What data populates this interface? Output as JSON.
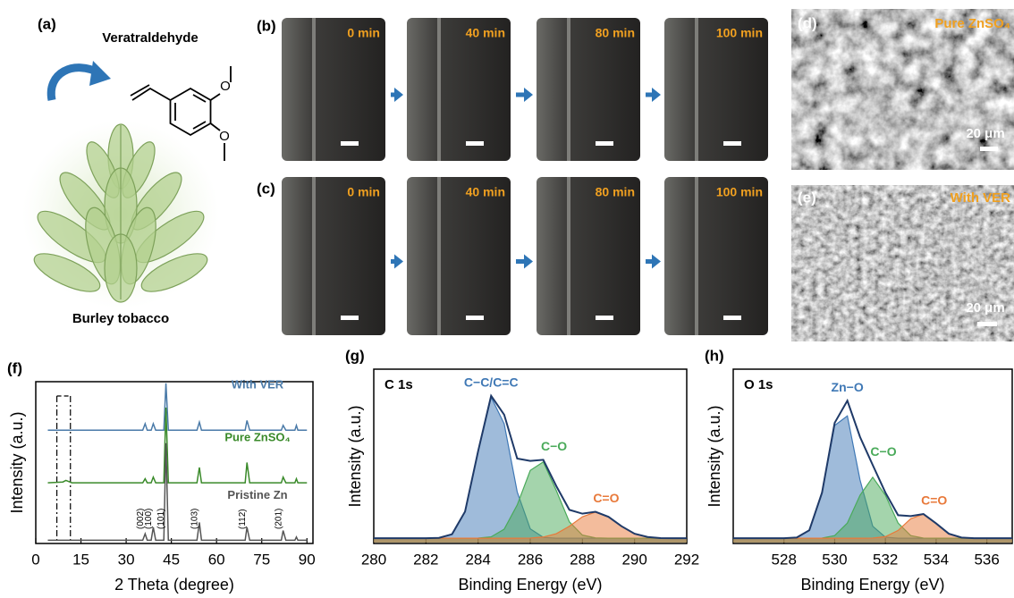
{
  "figure": {
    "panel_a": {
      "label": "(a)",
      "molecule": "Veratraldehyde",
      "atoms": [
        "O",
        "O"
      ],
      "plant": "Burley tobacco"
    },
    "panel_b": {
      "label": "(b)",
      "frames": [
        "0 min",
        "40 min",
        "80 min",
        "100 min"
      ]
    },
    "panel_c": {
      "label": "(c)",
      "frames": [
        "0 min",
        "40 min",
        "80 min",
        "100 min"
      ]
    },
    "panel_d": {
      "label": "(d)",
      "caption": "Pure ZnSO₄",
      "scale": "20 μm"
    },
    "panel_e": {
      "label": "(e)",
      "caption": "With VER",
      "scale": "20 μm"
    }
  },
  "chart_data": [
    {
      "type": "line",
      "panel": "(f)",
      "xlabel": "2 Theta (degree)",
      "ylabel": "Intensity (a.u.)",
      "xlim": [
        0,
        92
      ],
      "ylim": [
        0,
        100
      ],
      "xticks": [
        0,
        15,
        30,
        45,
        60,
        75,
        90
      ],
      "highlight_range": [
        7,
        11.5
      ],
      "x": [
        4,
        9,
        10,
        12,
        20,
        30,
        35.5,
        36.3,
        37,
        38.3,
        39,
        39.8,
        42.5,
        43.2,
        44,
        53.5,
        54.3,
        55,
        69.5,
        70.1,
        71,
        81.5,
        82.1,
        83,
        86,
        86.5,
        87,
        90
      ],
      "series": [
        {
          "name": "With VER",
          "color": "#4a7aa8",
          "values": [
            70,
            70,
            70,
            70,
            70,
            70,
            70,
            74,
            70,
            70,
            74,
            70,
            70,
            99,
            70,
            70,
            75,
            70,
            70,
            76,
            70,
            70,
            73,
            70,
            70,
            73,
            70,
            70
          ]
        },
        {
          "name": "Pure ZnSO₄",
          "color": "#3a8a2a",
          "values": [
            37.5,
            38,
            39,
            37.5,
            37.5,
            37.5,
            37.5,
            40,
            37.5,
            37.5,
            41,
            37.5,
            37.5,
            84,
            37.5,
            37.5,
            47,
            37.5,
            37.5,
            50,
            37.5,
            37.5,
            41,
            37.5,
            37.5,
            40,
            37.5,
            37.5
          ]
        },
        {
          "name": "Pristine Zn",
          "color": "#555555",
          "values": [
            2,
            2,
            2,
            2,
            2,
            2,
            2,
            6,
            2,
            2,
            10,
            2,
            2,
            62,
            2,
            2,
            13,
            2,
            2,
            10,
            2,
            2,
            8,
            2,
            2,
            4,
            2,
            2
          ]
        }
      ],
      "annotations": [
        {
          "text": "(002)",
          "x": 36.3
        },
        {
          "text": "(100)",
          "x": 39
        },
        {
          "text": "(101)",
          "x": 43.2
        },
        {
          "text": "(103)",
          "x": 54.3
        },
        {
          "text": "(112)",
          "x": 70.1
        },
        {
          "text": "(201)",
          "x": 82.1
        }
      ]
    },
    {
      "type": "area",
      "panel": "(g)",
      "title": "C 1s",
      "xlabel": "Binding Energy (eV)",
      "ylabel": "Intensity (a.u.)",
      "xlim": [
        280,
        292
      ],
      "ylim": [
        0,
        100
      ],
      "xticks": [
        280,
        282,
        284,
        286,
        288,
        290,
        292
      ],
      "x": [
        280,
        280.5,
        281,
        281.5,
        282,
        282.5,
        283,
        283.5,
        284,
        284.5,
        285,
        285.5,
        286,
        286.5,
        287,
        287.5,
        288,
        288.5,
        289,
        289.5,
        290,
        290.5,
        291,
        291.5,
        292
      ],
      "series": [
        {
          "name": "C−C/C=C",
          "color": "#3f78b5",
          "fill": true,
          "values": [
            3,
            3,
            3,
            3,
            3,
            3.2,
            5.3,
            18.3,
            52.8,
            83.9,
            68.7,
            29.6,
            8.4,
            3.5,
            3,
            3,
            3,
            3,
            3,
            3,
            3,
            3,
            3,
            3,
            3
          ]
        },
        {
          "name": "C−O",
          "color": "#4aaa5a",
          "fill": true,
          "values": [
            3,
            3,
            3,
            3,
            3,
            3,
            3,
            3,
            3.1,
            3.8,
            8.2,
            22.1,
            41.9,
            46.8,
            30.3,
            12.4,
            4.8,
            3.2,
            3,
            3,
            3,
            3,
            3,
            3,
            3
          ]
        },
        {
          "name": "C=O",
          "color": "#e8793a",
          "fill": true,
          "values": [
            3,
            3,
            3,
            3,
            3,
            3,
            3,
            3,
            3,
            3,
            3,
            3,
            3.1,
            3.7,
            5.6,
            9.9,
            15.3,
            18,
            15.3,
            9.9,
            5.6,
            3.7,
            3.1,
            3,
            3
          ]
        },
        {
          "color": "#1f3a68",
          "fill": false,
          "values": [
            3,
            3,
            3,
            3,
            3,
            3.2,
            5.3,
            18.3,
            52.9,
            84.7,
            73.9,
            48.7,
            47.4,
            48,
            32.9,
            19.3,
            17.1,
            18.2,
            15.3,
            9.9,
            5.6,
            3.7,
            3.1,
            3,
            3
          ]
        }
      ]
    },
    {
      "type": "area",
      "panel": "(h)",
      "title": "O 1s",
      "xlabel": "Binding Energy (eV)",
      "ylabel": "Intensity (a.u.)",
      "xlim": [
        526,
        537
      ],
      "ylim": [
        0,
        100
      ],
      "xticks": [
        528,
        530,
        532,
        534,
        536
      ],
      "x": [
        526,
        526.5,
        527,
        527.5,
        528,
        528.5,
        529,
        529.5,
        530,
        530.5,
        531,
        531.5,
        532,
        532.5,
        533,
        533.5,
        534,
        534.5,
        535,
        535.5,
        536,
        536.5,
        537
      ],
      "series": [
        {
          "name": "Zn−O",
          "color": "#3f78b5",
          "fill": true,
          "values": [
            3,
            3,
            3,
            3,
            3,
            3.4,
            7.6,
            29,
            67.7,
            73.2,
            36.4,
            9.9,
            3.6,
            3,
            3,
            3,
            3,
            3,
            3,
            3,
            3,
            3,
            3
          ]
        },
        {
          "name": "C−O",
          "color": "#4aaa5a",
          "fill": true,
          "values": [
            3,
            3,
            3,
            3,
            3,
            3,
            3,
            3.1,
            4.5,
            11.7,
            27.7,
            38,
            27.7,
            11.7,
            4.5,
            3.1,
            3,
            3,
            3,
            3,
            3,
            3,
            3
          ]
        },
        {
          "name": "C=O",
          "color": "#e8793a",
          "fill": true,
          "values": [
            3,
            3,
            3,
            3,
            3,
            3,
            3,
            3,
            3,
            3,
            3,
            3.1,
            3.9,
            7.5,
            14.2,
            16.8,
            11.5,
            5.6,
            3.4,
            3,
            3,
            3,
            3
          ]
        },
        {
          "color": "#1f3a68",
          "fill": false,
          "values": [
            3,
            3,
            3,
            3,
            3,
            3.4,
            7.6,
            29.1,
            69.2,
            81.9,
            61.1,
            45,
            29.2,
            16.2,
            15.7,
            16.9,
            11.5,
            5.6,
            3.4,
            3,
            3,
            3,
            3
          ]
        }
      ]
    }
  ]
}
